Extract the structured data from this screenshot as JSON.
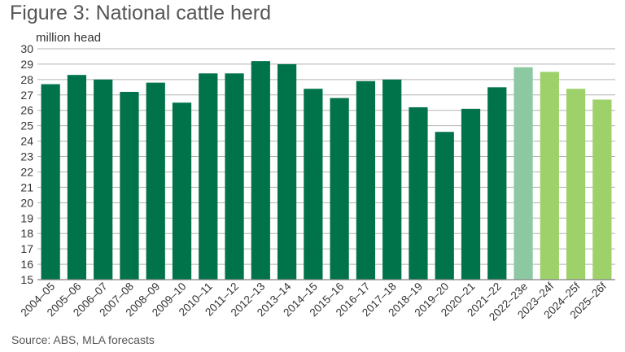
{
  "title": "Figure 3: National cattle herd",
  "source": "Source: ABS, MLA forecasts",
  "chart_data": {
    "type": "bar",
    "title": "Figure 3: National cattle herd",
    "ylabel": "million head",
    "xlabel": "",
    "ylim": [
      15,
      30
    ],
    "yticks": [
      15,
      16,
      17,
      18,
      19,
      20,
      21,
      22,
      23,
      24,
      25,
      26,
      27,
      28,
      29,
      30
    ],
    "grid": true,
    "categories": [
      "2004–05",
      "2005–06",
      "2006–07",
      "2007–08",
      "2008–09",
      "2009–10",
      "2010–11",
      "2011–12",
      "2012–13",
      "2013–14",
      "2014–15",
      "2015–16",
      "2016–17",
      "2017–18",
      "2018–19",
      "2019–20",
      "2020–21",
      "2021–22",
      "2022–23e",
      "2023–24f",
      "2024–25f",
      "2025–26f"
    ],
    "values": [
      27.7,
      28.3,
      28.0,
      27.2,
      27.8,
      26.5,
      28.4,
      28.4,
      29.2,
      29.0,
      27.4,
      26.8,
      27.9,
      28.0,
      26.2,
      24.6,
      26.1,
      27.5,
      28.8,
      28.5,
      27.4,
      26.7
    ],
    "colors": {
      "actual": "#00734a",
      "estimate": "#8cc9a3",
      "forecast": "#9fd16b",
      "grid": "#b3b3b3",
      "axis": "#808080"
    },
    "bar_kind": [
      "actual",
      "actual",
      "actual",
      "actual",
      "actual",
      "actual",
      "actual",
      "actual",
      "actual",
      "actual",
      "actual",
      "actual",
      "actual",
      "actual",
      "actual",
      "actual",
      "actual",
      "actual",
      "estimate",
      "forecast",
      "forecast",
      "forecast"
    ]
  }
}
